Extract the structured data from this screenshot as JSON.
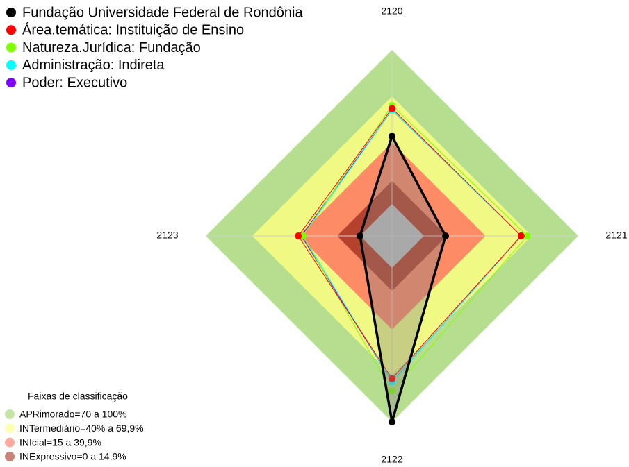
{
  "chart_data": {
    "type": "radar",
    "categories": [
      "2120",
      "2121",
      "2122",
      "2123"
    ],
    "ylim": [
      0,
      100
    ],
    "series": [
      {
        "name": "Fundação Universidade Federal de Rondônia",
        "color": "#000000",
        "values": [
          44,
          14,
          100,
          0
        ]
      },
      {
        "name": "Área.temática: Instituição de Ensino",
        "color": "#ff0000",
        "values": [
          62,
          63,
          72,
          40
        ]
      },
      {
        "name": "Natureza.Jurídica: Fundação",
        "color": "#7fff00",
        "values": [
          64,
          67,
          80,
          37
        ]
      },
      {
        "name": "Administração: Indireta",
        "color": "#00ffff",
        "values": [
          61,
          63,
          74,
          37
        ]
      },
      {
        "name": "Poder: Executivo",
        "color": "#8000ff",
        "values": [
          61,
          63,
          74,
          38
        ]
      }
    ],
    "legend_title": "Faixas de classificação",
    "bands": [
      {
        "name": "APRimorado=70 a 100%",
        "value": 100,
        "color": "#9ed36a"
      },
      {
        "name": "INTermediário=40% a 69,9%",
        "value": 69.9,
        "color": "#ffff80"
      },
      {
        "name": "INIcial=15 a 39,9%",
        "value": 39.9,
        "color": "#ff6f5f"
      },
      {
        "name": "INExpressivo=0 a 14,9%",
        "value": 14.9,
        "color": "#a3301e"
      }
    ]
  }
}
